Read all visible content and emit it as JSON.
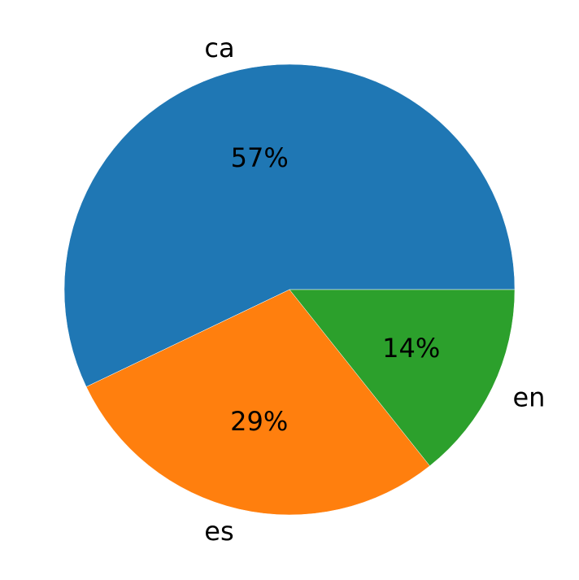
{
  "chart_data": {
    "type": "pie",
    "categories": [
      "ca",
      "es",
      "en"
    ],
    "values": [
      57.1,
      28.6,
      14.3
    ],
    "data_labels": [
      "57%",
      "29%",
      "14%"
    ],
    "colors": [
      "#1f77b4",
      "#ff7f0e",
      "#2ca02c"
    ],
    "start_angle": 0,
    "direction": "counterclockwise",
    "title": "",
    "legend": "none"
  }
}
